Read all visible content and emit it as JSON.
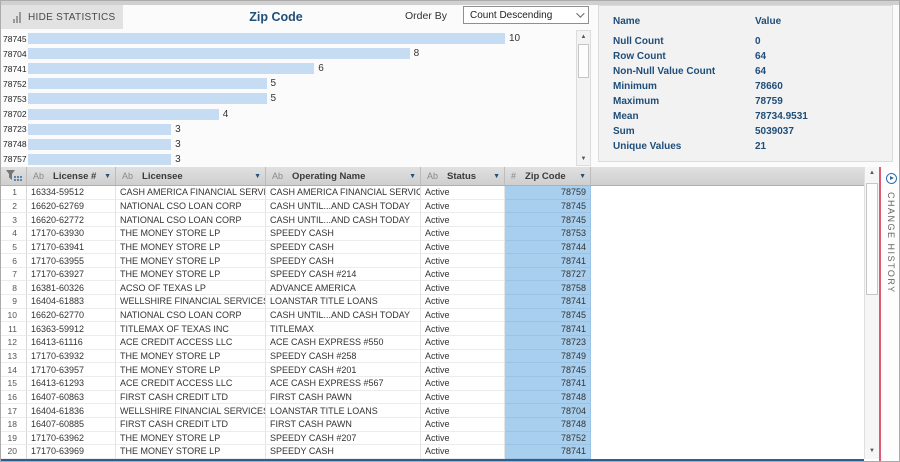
{
  "toolbar": {
    "hide_statistics_label": "HIDE STATISTICS",
    "title": "Zip Code",
    "order_by_label": "Order By",
    "order_by_value": "Count Descending"
  },
  "chart_data": {
    "type": "bar",
    "orientation": "horizontal",
    "title": "Zip Code",
    "categories": [
      "78745",
      "78704",
      "78741",
      "78752",
      "78753",
      "78702",
      "78723",
      "78748",
      "78757"
    ],
    "values": [
      10,
      8,
      6,
      5,
      5,
      4,
      3,
      3,
      3
    ],
    "xlim": [
      0,
      10
    ],
    "sort": "Count Descending",
    "bar_color": "#c5dcf2"
  },
  "statistics": {
    "name_header": "Name",
    "value_header": "Value",
    "rows": [
      {
        "name": "Null Count",
        "value": "0"
      },
      {
        "name": "Row Count",
        "value": "64"
      },
      {
        "name": "Non-Null Value Count",
        "value": "64"
      },
      {
        "name": "Minimum",
        "value": "78660"
      },
      {
        "name": "Maximum",
        "value": "78759"
      },
      {
        "name": "Mean",
        "value": "78734.9531"
      },
      {
        "name": "Sum",
        "value": "5039037"
      },
      {
        "name": "Unique Values",
        "value": "21"
      }
    ]
  },
  "table": {
    "columns": [
      {
        "type": "Ab",
        "label": "License #"
      },
      {
        "type": "Ab",
        "label": "Licensee"
      },
      {
        "type": "Ab",
        "label": "Operating Name"
      },
      {
        "type": "Ab",
        "label": "Status"
      },
      {
        "type": "#",
        "label": "Zip Code"
      }
    ],
    "rows": [
      {
        "num": "1",
        "license": "16334-59512",
        "licensee": "CASH AMERICA FINANCIAL SERVICES INC",
        "operating_name": "CASH AMERICA FINANCIAL SERVICES INC",
        "status": "Active",
        "zip": "78759"
      },
      {
        "num": "2",
        "license": "16620-62769",
        "licensee": "NATIONAL CSO LOAN CORP",
        "operating_name": "CASH UNTIL...AND CASH TODAY",
        "status": "Active",
        "zip": "78745"
      },
      {
        "num": "3",
        "license": "16620-62772",
        "licensee": "NATIONAL CSO LOAN CORP",
        "operating_name": "CASH UNTIL...AND CASH TODAY",
        "status": "Active",
        "zip": "78745"
      },
      {
        "num": "4",
        "license": "17170-63930",
        "licensee": "THE MONEY STORE LP",
        "operating_name": "SPEEDY CASH",
        "status": "Active",
        "zip": "78753"
      },
      {
        "num": "5",
        "license": "17170-63941",
        "licensee": "THE MONEY STORE LP",
        "operating_name": "SPEEDY CASH",
        "status": "Active",
        "zip": "78744"
      },
      {
        "num": "6",
        "license": "17170-63955",
        "licensee": "THE MONEY STORE LP",
        "operating_name": "SPEEDY CASH",
        "status": "Active",
        "zip": "78741"
      },
      {
        "num": "7",
        "license": "17170-63927",
        "licensee": "THE MONEY STORE LP",
        "operating_name": "SPEEDY CASH #214",
        "status": "Active",
        "zip": "78727"
      },
      {
        "num": "8",
        "license": "16381-60326",
        "licensee": "ACSO OF TEXAS LP",
        "operating_name": "ADVANCE AMERICA",
        "status": "Active",
        "zip": "78758"
      },
      {
        "num": "9",
        "license": "16404-61883",
        "licensee": "WELLSHIRE FINANCIAL SERVICES LLC",
        "operating_name": "LOANSTAR TITLE LOANS",
        "status": "Active",
        "zip": "78741"
      },
      {
        "num": "10",
        "license": "16620-62770",
        "licensee": "NATIONAL CSO LOAN CORP",
        "operating_name": "CASH UNTIL...AND CASH TODAY",
        "status": "Active",
        "zip": "78745"
      },
      {
        "num": "11",
        "license": "16363-59912",
        "licensee": "TITLEMAX OF TEXAS INC",
        "operating_name": "TITLEMAX",
        "status": "Active",
        "zip": "78741"
      },
      {
        "num": "12",
        "license": "16413-61116",
        "licensee": "ACE CREDIT ACCESS LLC",
        "operating_name": "ACE CASH EXPRESS #550",
        "status": "Active",
        "zip": "78723"
      },
      {
        "num": "13",
        "license": "17170-63932",
        "licensee": "THE MONEY STORE LP",
        "operating_name": "SPEEDY CASH #258",
        "status": "Active",
        "zip": "78749"
      },
      {
        "num": "14",
        "license": "17170-63957",
        "licensee": "THE MONEY STORE LP",
        "operating_name": "SPEEDY CASH #201",
        "status": "Active",
        "zip": "78745"
      },
      {
        "num": "15",
        "license": "16413-61293",
        "licensee": "ACE CREDIT ACCESS LLC",
        "operating_name": "ACE CASH EXPRESS #567",
        "status": "Active",
        "zip": "78741"
      },
      {
        "num": "16",
        "license": "16407-60863",
        "licensee": "FIRST CASH CREDIT LTD",
        "operating_name": "FIRST CASH PAWN",
        "status": "Active",
        "zip": "78748"
      },
      {
        "num": "17",
        "license": "16404-61836",
        "licensee": "WELLSHIRE FINANCIAL SERVICES LLC",
        "operating_name": "LOANSTAR TITLE LOANS",
        "status": "Active",
        "zip": "78704"
      },
      {
        "num": "18",
        "license": "16407-60885",
        "licensee": "FIRST CASH CREDIT LTD",
        "operating_name": "FIRST CASH PAWN",
        "status": "Active",
        "zip": "78748"
      },
      {
        "num": "19",
        "license": "17170-63962",
        "licensee": "THE MONEY STORE LP",
        "operating_name": "SPEEDY CASH #207",
        "status": "Active",
        "zip": "78752"
      },
      {
        "num": "20",
        "license": "17170-63969",
        "licensee": "THE MONEY STORE LP",
        "operating_name": "SPEEDY CASH",
        "status": "Active",
        "zip": "78741"
      }
    ]
  },
  "side_panel": {
    "label": "CHANGE HISTORY"
  },
  "colors": {
    "accent_navy": "#1f4e79",
    "bar_fill": "#c5dcf2",
    "zip_highlight": "#a9cfee",
    "red_divider": "#dd5a72",
    "bottom_bar": "#2c5d94"
  }
}
